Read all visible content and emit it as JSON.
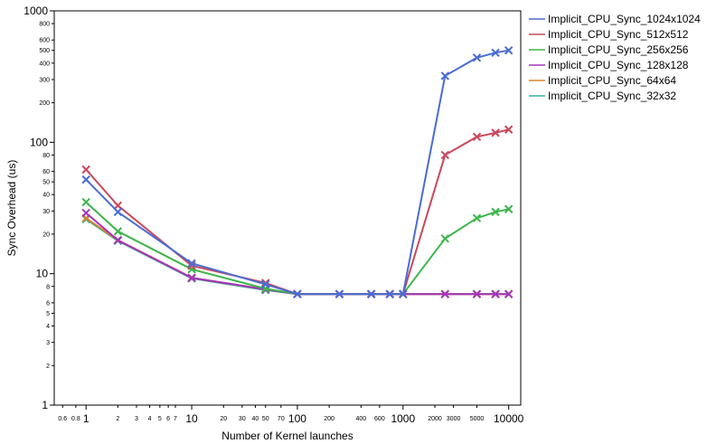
{
  "chart_data": {
    "type": "line",
    "x_scale": "log",
    "y_scale": "log",
    "xlabel": "Number of Kernel launches",
    "ylabel": "Sync Overhead (us)",
    "xlim": [
      0.5,
      13000
    ],
    "ylim": [
      1,
      1000
    ],
    "x_major_ticks": [
      {
        "value": 1,
        "label": "1"
      },
      {
        "value": 10,
        "label": "10"
      },
      {
        "value": 100,
        "label": "100"
      },
      {
        "value": 1000,
        "label": "1000"
      },
      {
        "value": 10000,
        "label": "10000"
      }
    ],
    "x_minor_ticks": [
      {
        "value": 0.6,
        "label": "0.6"
      },
      {
        "value": 0.8,
        "label": "0.8"
      },
      {
        "value": 2,
        "label": "2"
      },
      {
        "value": 3,
        "label": "3"
      },
      {
        "value": 4,
        "label": "4"
      },
      {
        "value": 5,
        "label": "5"
      },
      {
        "value": 6,
        "label": "6"
      },
      {
        "value": 7,
        "label": "7"
      },
      {
        "value": 20,
        "label": "20"
      },
      {
        "value": 30,
        "label": "30"
      },
      {
        "value": 40,
        "label": "40"
      },
      {
        "value": 50,
        "label": "50"
      },
      {
        "value": 70,
        "label": "70"
      },
      {
        "value": 200,
        "label": "200"
      },
      {
        "value": 400,
        "label": "400"
      },
      {
        "value": 600,
        "label": "600"
      },
      {
        "value": 2000,
        "label": "2000"
      },
      {
        "value": 3000,
        "label": "3000"
      },
      {
        "value": 5000,
        "label": "5000"
      }
    ],
    "y_major_ticks": [
      {
        "value": 1,
        "label": "1"
      },
      {
        "value": 10,
        "label": "10"
      },
      {
        "value": 100,
        "label": "100"
      },
      {
        "value": 1000,
        "label": "1000"
      }
    ],
    "y_minor_ticks": [
      {
        "value": 2,
        "label": "2"
      },
      {
        "value": 3,
        "label": "3"
      },
      {
        "value": 4,
        "label": "4"
      },
      {
        "value": 5,
        "label": "5"
      },
      {
        "value": 6,
        "label": "6"
      },
      {
        "value": 8,
        "label": "8"
      },
      {
        "value": 20,
        "label": "20"
      },
      {
        "value": 30,
        "label": "30"
      },
      {
        "value": 40,
        "label": "40"
      },
      {
        "value": 50,
        "label": "50"
      },
      {
        "value": 60,
        "label": "60"
      },
      {
        "value": 80,
        "label": "80"
      },
      {
        "value": 200,
        "label": "200"
      },
      {
        "value": 300,
        "label": "300"
      },
      {
        "value": 400,
        "label": "400"
      },
      {
        "value": 500,
        "label": "500"
      },
      {
        "value": 600,
        "label": "600"
      },
      {
        "value": 800,
        "label": "800"
      }
    ],
    "x": [
      1,
      2,
      10,
      50,
      100,
      250,
      500,
      750,
      1000,
      2500,
      5000,
      7500,
      10000
    ],
    "series": [
      {
        "name": "Implicit_CPU_Sync_1024x1024",
        "color": "#4a6cd4",
        "values": [
          52,
          29.5,
          12,
          8.3,
          7,
          7,
          7,
          7,
          7,
          320,
          440,
          480,
          500
        ]
      },
      {
        "name": "Implicit_CPU_Sync_512x512",
        "color": "#c9485b",
        "values": [
          62,
          33,
          11.5,
          8.5,
          7,
          7,
          7,
          7,
          7,
          80,
          110,
          118,
          125
        ]
      },
      {
        "name": "Implicit_CPU_Sync_256x256",
        "color": "#3db54a",
        "values": [
          35,
          21,
          10.8,
          7.7,
          7,
          7,
          7,
          7,
          7,
          18.5,
          26.5,
          29.5,
          31
        ]
      },
      {
        "name": "Implicit_CPU_Sync_128x128",
        "color": "#a633b8",
        "values": [
          29,
          18,
          9.3,
          7.6,
          7,
          7,
          7,
          7,
          7,
          7,
          7,
          7,
          7
        ]
      },
      {
        "name": "Implicit_CPU_Sync_64x64",
        "color": "#d9822b",
        "values": [
          26.5,
          18,
          9.3,
          7.6,
          7,
          7,
          7,
          7,
          7,
          7,
          7,
          7,
          7
        ]
      },
      {
        "name": "Implicit_CPU_Sync_32x32",
        "color": "#2fb39a",
        "values": [
          26,
          17.8,
          9.2,
          7.5,
          7,
          7,
          7,
          7,
          7,
          7,
          7,
          7,
          7
        ]
      }
    ],
    "legend_position": "top-right",
    "grid": false
  }
}
